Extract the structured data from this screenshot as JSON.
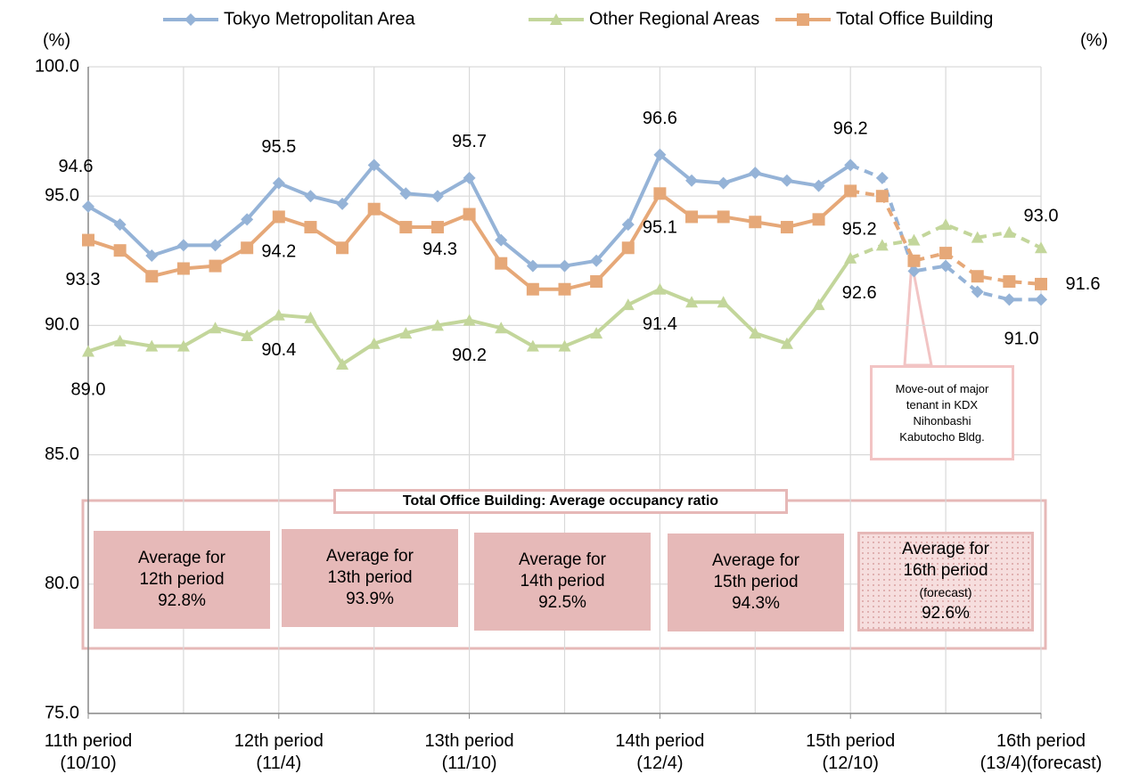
{
  "chart_data": {
    "type": "line",
    "y_unit_left": "(%)",
    "y_unit_right": "(%)",
    "categories": [
      "11th period\n(10/10)",
      null,
      null,
      null,
      null,
      null,
      "12th period\n(11/4)",
      null,
      null,
      null,
      null,
      null,
      "13th period\n(11/10)",
      null,
      null,
      null,
      null,
      null,
      "14th period\n(12/4)",
      null,
      null,
      null,
      null,
      null,
      "15th period\n(12/10)",
      null,
      null,
      null,
      null,
      null,
      "16th period\n(13/4)(forecast)"
    ],
    "ylim": [
      75,
      100
    ],
    "yticks": [
      {
        "value": 75,
        "label": "75.0"
      },
      {
        "value": 80,
        "label": "80.0"
      },
      {
        "value": 85,
        "label": "85.0"
      },
      {
        "value": 90,
        "label": "90.0"
      },
      {
        "value": 95,
        "label": "95.0"
      },
      {
        "value": 100,
        "label": "100.0"
      }
    ],
    "grid": true,
    "forecast_start": 24,
    "legend_position": "top",
    "series": [
      {
        "name": "Tokyo Metropolitan Area",
        "color": "#95b3d7",
        "marker": "diamond",
        "values": [
          94.6,
          93.9,
          92.7,
          93.1,
          93.1,
          94.1,
          95.5,
          95.0,
          94.7,
          96.2,
          95.1,
          95.0,
          95.7,
          93.3,
          92.3,
          92.3,
          92.5,
          93.9,
          96.6,
          95.6,
          95.5,
          95.9,
          95.6,
          95.4,
          96.2,
          95.7,
          92.1,
          92.3,
          91.3,
          91.0,
          91.0
        ],
        "value_labels": [
          "94.6",
          null,
          null,
          null,
          null,
          null,
          "95.5",
          null,
          null,
          null,
          null,
          null,
          "95.7",
          null,
          null,
          null,
          null,
          null,
          "96.6",
          null,
          null,
          null,
          null,
          null,
          "96.2",
          null,
          null,
          null,
          null,
          null,
          "91.0"
        ]
      },
      {
        "name": "Other Regional Areas",
        "color": "#c3d69b",
        "marker": "triangle",
        "values": [
          89.0,
          89.4,
          89.2,
          89.2,
          89.9,
          89.6,
          90.4,
          90.3,
          88.5,
          89.3,
          89.7,
          90.0,
          90.2,
          89.9,
          89.2,
          89.2,
          89.7,
          90.8,
          91.4,
          90.9,
          90.9,
          89.7,
          89.3,
          90.8,
          92.6,
          93.1,
          93.3,
          93.9,
          93.4,
          93.6,
          93.0
        ],
        "value_labels": [
          "89.0",
          null,
          null,
          null,
          null,
          null,
          "90.4",
          null,
          null,
          null,
          null,
          null,
          "90.2",
          null,
          null,
          null,
          null,
          null,
          "91.4",
          null,
          null,
          null,
          null,
          null,
          "92.6",
          null,
          null,
          null,
          null,
          null,
          "93.0"
        ]
      },
      {
        "name": "Total Office Building",
        "color": "#e6a878",
        "marker": "square",
        "values": [
          93.3,
          92.9,
          91.9,
          92.2,
          92.3,
          93.0,
          94.2,
          93.8,
          93.0,
          94.5,
          93.8,
          93.8,
          94.3,
          92.4,
          91.4,
          91.4,
          91.7,
          93.0,
          95.1,
          94.2,
          94.2,
          94.0,
          93.8,
          94.1,
          95.2,
          95.0,
          92.5,
          92.8,
          91.9,
          91.7,
          91.6
        ],
        "value_labels": [
          "93.3",
          null,
          null,
          null,
          null,
          null,
          "94.2",
          null,
          null,
          null,
          null,
          null,
          "94.3",
          null,
          null,
          null,
          null,
          null,
          "95.1",
          null,
          null,
          null,
          null,
          null,
          "95.2",
          null,
          null,
          null,
          null,
          null,
          "91.6"
        ]
      }
    ],
    "annotations": {
      "frame_title": "Total Office Building: Average occupancy ratio",
      "averages": [
        [
          "Average for",
          "12th period",
          "92.8%"
        ],
        [
          "Average for",
          "13th period",
          "93.9%"
        ],
        [
          "Average for",
          "14th period",
          "92.5%"
        ],
        [
          "Average for",
          "15th period",
          "94.3%"
        ],
        [
          "Average for",
          "16th period",
          "(forecast)",
          "92.6%"
        ]
      ],
      "callout": [
        "Move-out of major",
        "tenant in KDX",
        "Nihonbashi",
        "Kabutocho Bldg."
      ]
    }
  }
}
